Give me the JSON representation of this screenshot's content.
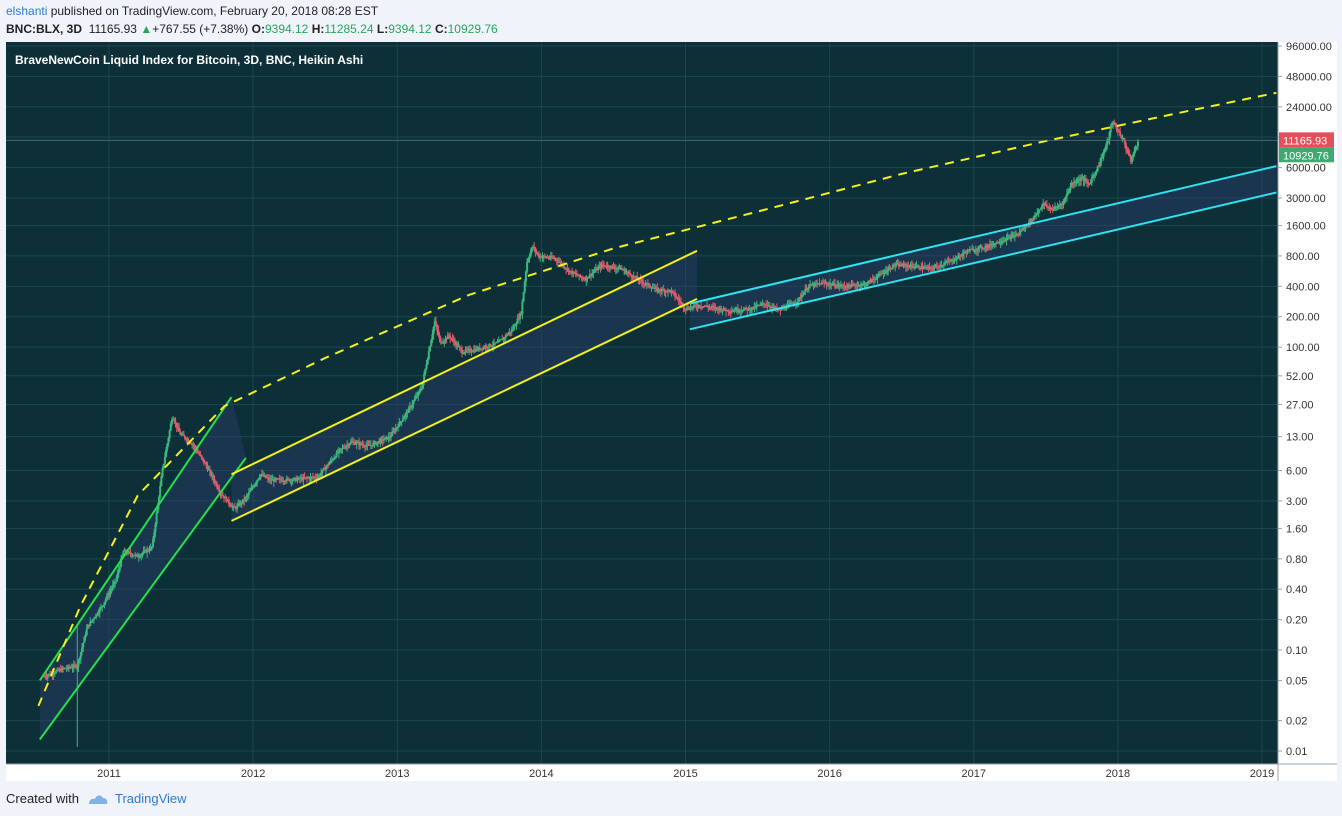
{
  "header": {
    "author": "elshanti",
    "published_text": " published on TradingView.com, February 20, 2018 08:28 EST",
    "symbol": "BNC:BLX, 3D",
    "last": "11165.93",
    "change": "+767.55 (+7.38%)",
    "o_label": "O:",
    "o_value": "9394.12",
    "h_label": "H:",
    "h_value": "11285.24",
    "l_label": "L:",
    "l_value": "9394.12",
    "c_label": "C:",
    "c_value": "10929.76"
  },
  "footer": {
    "created_with": "Created with",
    "brand": "TradingView"
  },
  "colors": {
    "background": "#0d3038",
    "grid": "#1e4550",
    "up": "#3bb77e",
    "down": "#e05a6b",
    "green_channel": "#22e04a",
    "yellow_channel": "#f4f018",
    "cyan_channel": "#2ee3f2",
    "last_label": "#e54e5a",
    "close_label": "#3faa6f"
  },
  "chart_data": {
    "type": "candlestick",
    "title": "BraveNewCoin Liquid Index for Bitcoin, 3D, BNC, Heikin Ashi",
    "y_scale": "log",
    "y_ticks": [
      "96000.00",
      "48000.00",
      "24000.00",
      "12000.00",
      "6000.00",
      "3000.00",
      "1600.00",
      "800.00",
      "400.00",
      "200.00",
      "100.00",
      "52.00",
      "27.00",
      "13.00",
      "6.00",
      "3.00",
      "1.60",
      "0.80",
      "0.40",
      "0.20",
      "0.10",
      "0.05",
      "0.02",
      "0.01"
    ],
    "x_ticks": [
      "2011",
      "2012",
      "2013",
      "2014",
      "2015",
      "2016",
      "2017",
      "2018",
      "2019"
    ],
    "price_labels": [
      {
        "text": "11165.93",
        "value": 11165.93,
        "kind": "last"
      },
      {
        "text": "10929.76",
        "value": 10929.76,
        "kind": "close"
      }
    ],
    "price_path": [
      [
        2010.55,
        0.055
      ],
      [
        2010.68,
        0.065
      ],
      [
        2010.78,
        0.07
      ],
      [
        2010.85,
        0.17
      ],
      [
        2010.95,
        0.27
      ],
      [
        2011.05,
        0.5
      ],
      [
        2011.1,
        0.95
      ],
      [
        2011.2,
        0.85
      ],
      [
        2011.3,
        1.05
      ],
      [
        2011.37,
        6.0
      ],
      [
        2011.44,
        21
      ],
      [
        2011.49,
        14
      ],
      [
        2011.58,
        11
      ],
      [
        2011.68,
        6.5
      ],
      [
        2011.78,
        3.5
      ],
      [
        2011.87,
        2.5
      ],
      [
        2011.95,
        3.2
      ],
      [
        2012.05,
        5.5
      ],
      [
        2012.12,
        4.8
      ],
      [
        2012.3,
        4.9
      ],
      [
        2012.45,
        5.2
      ],
      [
        2012.6,
        9.5
      ],
      [
        2012.68,
        11.5
      ],
      [
        2012.8,
        10.5
      ],
      [
        2012.95,
        13.0
      ],
      [
        2013.08,
        24
      ],
      [
        2013.17,
        40
      ],
      [
        2013.26,
        180
      ],
      [
        2013.3,
        110
      ],
      [
        2013.36,
        130
      ],
      [
        2013.45,
        90
      ],
      [
        2013.55,
        95
      ],
      [
        2013.7,
        110
      ],
      [
        2013.8,
        150
      ],
      [
        2013.86,
        220
      ],
      [
        2013.9,
        700
      ],
      [
        2013.94,
        1000
      ],
      [
        2013.98,
        800
      ],
      [
        2014.1,
        750
      ],
      [
        2014.2,
        560
      ],
      [
        2014.3,
        470
      ],
      [
        2014.42,
        650
      ],
      [
        2014.55,
        600
      ],
      [
        2014.68,
        460
      ],
      [
        2014.8,
        370
      ],
      [
        2014.9,
        360
      ],
      [
        2015.0,
        240
      ],
      [
        2015.1,
        260
      ],
      [
        2015.3,
        230
      ],
      [
        2015.45,
        240
      ],
      [
        2015.55,
        270
      ],
      [
        2015.65,
        230
      ],
      [
        2015.78,
        290
      ],
      [
        2015.85,
        400
      ],
      [
        2015.95,
        430
      ],
      [
        2016.1,
        400
      ],
      [
        2016.25,
        420
      ],
      [
        2016.45,
        650
      ],
      [
        2016.55,
        640
      ],
      [
        2016.7,
        600
      ],
      [
        2016.85,
        720
      ],
      [
        2016.96,
        900
      ],
      [
        2017.1,
        1000
      ],
      [
        2017.2,
        1150
      ],
      [
        2017.3,
        1300
      ],
      [
        2017.4,
        1800
      ],
      [
        2017.48,
        2600
      ],
      [
        2017.55,
        2300
      ],
      [
        2017.62,
        2700
      ],
      [
        2017.68,
        4200
      ],
      [
        2017.75,
        4700
      ],
      [
        2017.8,
        4100
      ],
      [
        2017.87,
        6500
      ],
      [
        2017.93,
        11000
      ],
      [
        2017.96,
        17000
      ],
      [
        2018.0,
        14000
      ],
      [
        2018.04,
        11000
      ],
      [
        2018.09,
        7000
      ],
      [
        2018.14,
        10929.76
      ]
    ],
    "annotations": [
      {
        "name": "green-channel-upper",
        "style": "solid",
        "color": "green",
        "points": [
          [
            2010.52,
            0.05
          ],
          [
            2011.85,
            32
          ]
        ]
      },
      {
        "name": "green-channel-lower",
        "style": "solid",
        "color": "green",
        "points": [
          [
            2010.52,
            0.013
          ],
          [
            2011.95,
            8
          ]
        ]
      },
      {
        "name": "yellow-channel-upper",
        "style": "solid",
        "color": "yellow",
        "points": [
          [
            2011.85,
            5.5
          ],
          [
            2015.08,
            900
          ]
        ]
      },
      {
        "name": "yellow-channel-lower",
        "style": "solid",
        "color": "yellow",
        "points": [
          [
            2011.85,
            1.9
          ],
          [
            2015.08,
            300
          ]
        ]
      },
      {
        "name": "cyan-channel-upper",
        "style": "solid",
        "color": "cyan",
        "points": [
          [
            2015.03,
            270
          ],
          [
            2019.1,
            6200
          ]
        ]
      },
      {
        "name": "cyan-channel-lower",
        "style": "solid",
        "color": "cyan",
        "points": [
          [
            2015.03,
            150
          ],
          [
            2019.1,
            3400
          ]
        ]
      },
      {
        "name": "log-arc",
        "style": "dashed",
        "color": "yellow",
        "points": [
          [
            2010.51,
            0.028
          ],
          [
            2010.8,
            0.27
          ],
          [
            2011.2,
            3.4
          ],
          [
            2011.8,
            26
          ],
          [
            2012.5,
            78
          ],
          [
            2013.5,
            330
          ],
          [
            2014.5,
            950
          ],
          [
            2015.5,
            2200
          ],
          [
            2016.5,
            5200
          ],
          [
            2017.5,
            11000
          ],
          [
            2018.5,
            22000
          ],
          [
            2019.1,
            33000
          ]
        ]
      }
    ]
  }
}
